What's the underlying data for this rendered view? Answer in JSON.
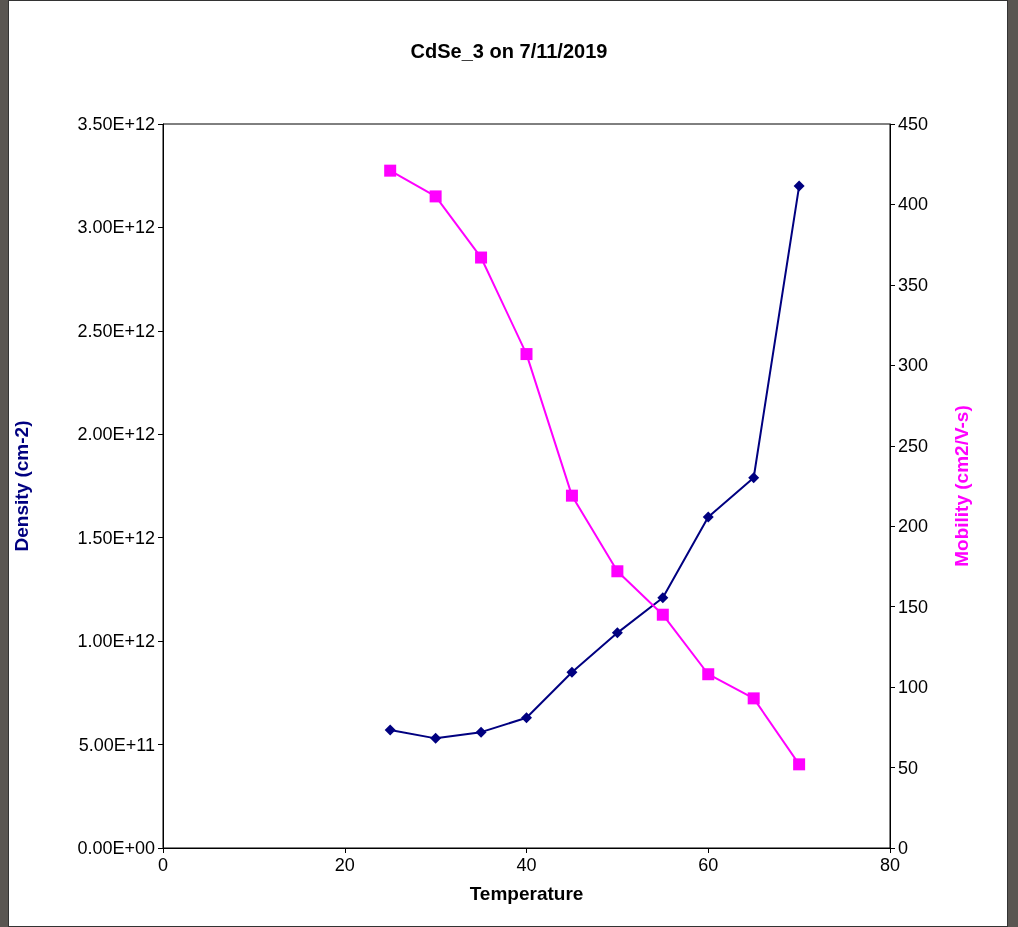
{
  "chart_data": {
    "type": "line",
    "title": "CdSe_3 on 7/11/2019",
    "xlabel": "Temperature",
    "ylabel": "Density (cm-2)",
    "y2label": "Mobility (cm2/V-s)",
    "x": [
      25,
      30,
      35,
      40,
      45,
      50,
      55,
      60,
      65,
      70
    ],
    "series": [
      {
        "color": "#000080",
        "marker": "diamond",
        "values": [
          570000000000,
          530000000000,
          560000000000,
          630000000000,
          850000000000,
          1040000000000,
          1210000000000,
          1600000000000,
          1790000000000,
          3200000000000
        ]
      },
      {
        "color": "#ff00ff",
        "marker": "square",
        "axis": "y2",
        "values": [
          421,
          405,
          367,
          307,
          219,
          172,
          145,
          108,
          93,
          52
        ]
      }
    ],
    "xlim": [
      0,
      80
    ],
    "xticks": [
      0,
      20,
      40,
      60,
      80
    ],
    "ylim": [
      0,
      3500000000000
    ],
    "yticks": [
      {
        "value": 0,
        "label": "0.00E+00"
      },
      {
        "value": 500000000000,
        "label": "5.00E+11"
      },
      {
        "value": 1000000000000,
        "label": "1.00E+12"
      },
      {
        "value": 1500000000000,
        "label": "1.50E+12"
      },
      {
        "value": 2000000000000,
        "label": "2.00E+12"
      },
      {
        "value": 2500000000000,
        "label": "2.50E+12"
      },
      {
        "value": 3000000000000,
        "label": "3.00E+12"
      },
      {
        "value": 3500000000000,
        "label": "3.50E+12"
      }
    ],
    "y2lim": [
      0,
      450
    ],
    "y2ticks": [
      0,
      50,
      100,
      150,
      200,
      250,
      300,
      350,
      400,
      450
    ],
    "line_style": "solid"
  }
}
